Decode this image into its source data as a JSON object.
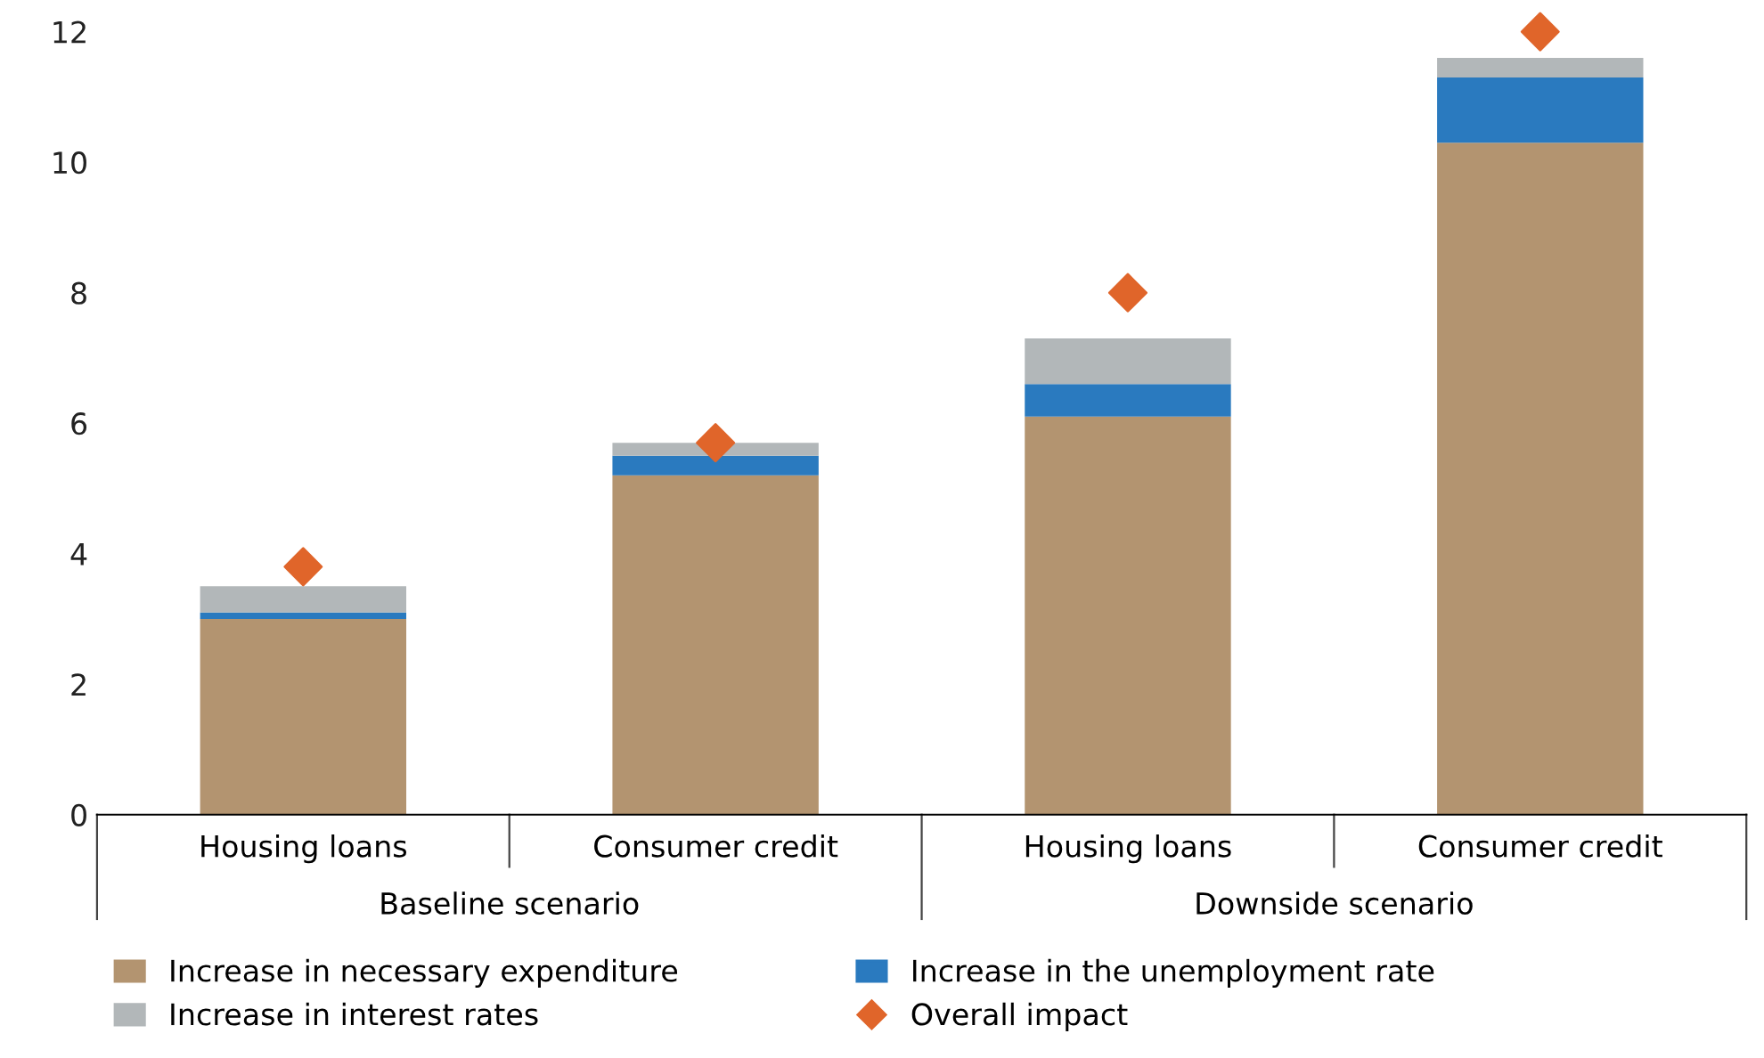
{
  "chart_data": {
    "type": "bar",
    "stacked": true,
    "categories": [
      "Housing loans",
      "Consumer credit",
      "Housing loans",
      "Consumer credit"
    ],
    "series": [
      {
        "name": "Increase in necessary expenditure",
        "color": "#b39470",
        "values": [
          3.0,
          5.2,
          6.1,
          10.3
        ]
      },
      {
        "name": "Increase in the unemployment rate",
        "color": "#2a7abf",
        "values": [
          0.1,
          0.3,
          0.5,
          1.0
        ]
      },
      {
        "name": "Increase in interest rates",
        "color": "#b2b7b9",
        "values": [
          0.4,
          0.2,
          0.7,
          0.3
        ]
      },
      {
        "name": "Overall impact",
        "color": "#e0652a",
        "type": "scatter",
        "marker": "diamond",
        "values": [
          3.8,
          5.7,
          8.0,
          12.0
        ]
      }
    ],
    "annotations": [
      "Baseline scenario",
      "Downside scenario"
    ],
    "ylim": [
      0,
      12
    ],
    "yticks": [
      0,
      2,
      4,
      6,
      8,
      10,
      12
    ],
    "grid": false,
    "legend": "bottom"
  }
}
